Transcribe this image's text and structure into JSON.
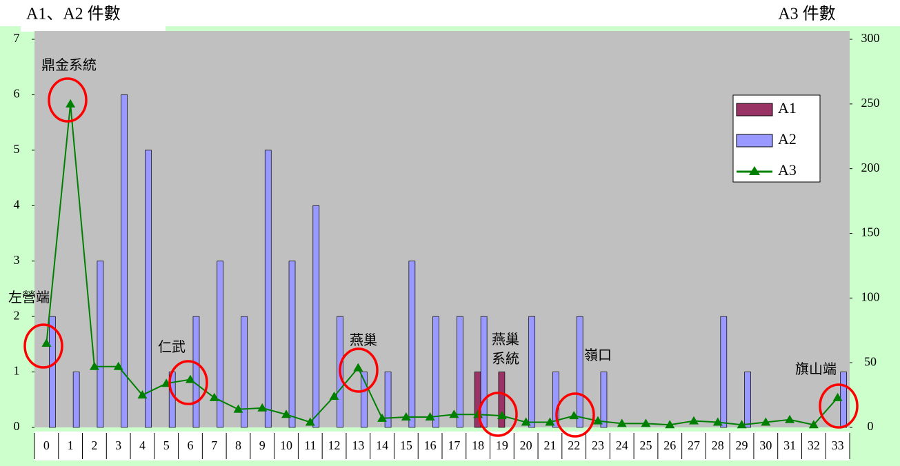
{
  "chart_data": {
    "type": "bar",
    "y_label": "A1、A2 件數",
    "y2_label": "A3 件數",
    "categories": [
      0,
      1,
      2,
      3,
      4,
      5,
      6,
      7,
      8,
      9,
      10,
      11,
      12,
      13,
      14,
      15,
      16,
      17,
      18,
      19,
      20,
      21,
      22,
      23,
      24,
      25,
      26,
      27,
      28,
      29,
      30,
      31,
      32,
      33
    ],
    "series": [
      {
        "name": "A1",
        "type": "bar",
        "color": "#993366",
        "values": [
          0,
          0,
          0,
          0,
          0,
          0,
          0,
          0,
          0,
          0,
          0,
          0,
          0,
          0,
          0,
          0,
          0,
          0,
          1,
          1,
          0,
          0,
          0,
          0,
          0,
          0,
          0,
          0,
          0,
          0,
          0,
          0,
          0,
          0
        ]
      },
      {
        "name": "A2",
        "type": "bar",
        "color": "#9999ff",
        "values": [
          2,
          1,
          3,
          6,
          5,
          1,
          2,
          3,
          2,
          5,
          3,
          4,
          2,
          1,
          1,
          3,
          2,
          2,
          2,
          0,
          2,
          1,
          2,
          1,
          0,
          0,
          0,
          0,
          2,
          1,
          0,
          0,
          0,
          1
        ]
      },
      {
        "name": "A3",
        "type": "line",
        "axis": "y2",
        "color": "#008000",
        "values": [
          65,
          250,
          47,
          47,
          25,
          34,
          37,
          23,
          14,
          15,
          10,
          4,
          24,
          46,
          7,
          8,
          8,
          10,
          10,
          9,
          4,
          4,
          9,
          5,
          3,
          3,
          2,
          5,
          4,
          2,
          4,
          6,
          2,
          23
        ]
      }
    ],
    "ylim": [
      0,
      7
    ],
    "yticks": [
      0,
      1,
      2,
      3,
      4,
      5,
      6,
      7
    ],
    "y2lim": [
      0,
      300
    ],
    "y2ticks": [
      0,
      50,
      100,
      150,
      200,
      250,
      300
    ],
    "annotations": [
      "左營端",
      "鼎金系統",
      "仁武",
      "燕巢",
      "燕巢\n系統",
      "嶺口",
      "旗山端"
    ],
    "legend": "upper right"
  }
}
